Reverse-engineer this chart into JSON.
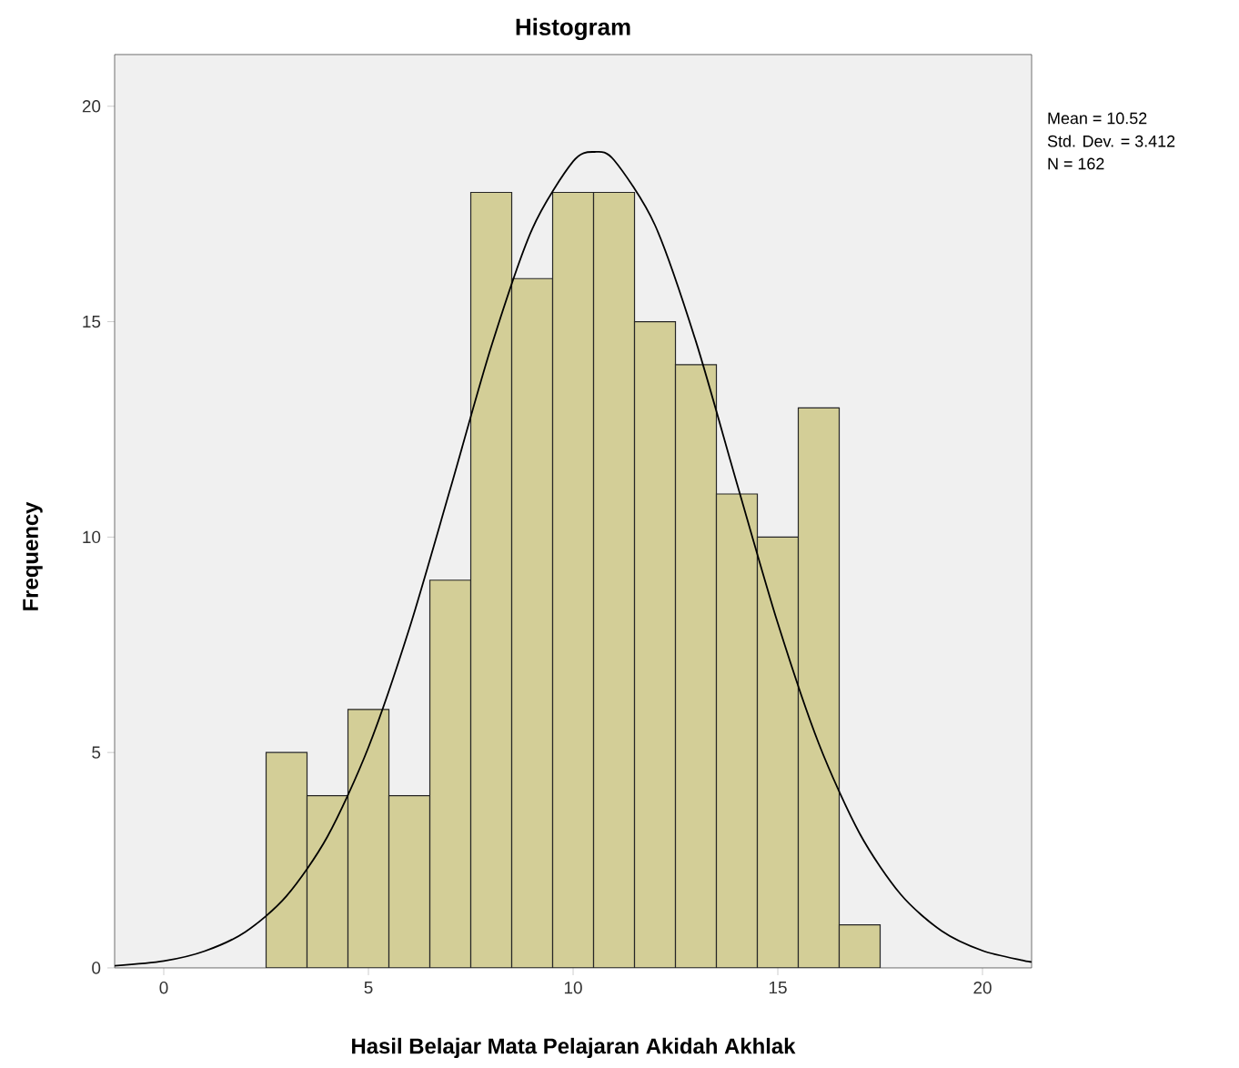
{
  "chart_data": {
    "type": "histogram",
    "title": "Histogram",
    "xlabel": "Hasil Belajar Mata Pelajaran Akidah Akhlak",
    "ylabel": "Frequency",
    "annotations": [
      "Mean = 10.52",
      "Std. Dev. = 3.412",
      "N = 162"
    ],
    "xlim": [
      -1.2,
      21.2
    ],
    "ylim": [
      0,
      21.2
    ],
    "xticks": [
      0,
      5,
      10,
      15,
      20
    ],
    "yticks": [
      0,
      5,
      10,
      15,
      20
    ],
    "series": [
      {
        "type": "histogram",
        "color": "#d3ce97",
        "bins": [
          2.5,
          3.5,
          4.5,
          5.5,
          6.5,
          7.5,
          8.5,
          9.5,
          10.5,
          11.5,
          12.5,
          13.5,
          14.5,
          15.5,
          16.5,
          17.5
        ],
        "values": [
          5,
          4,
          6,
          4,
          9,
          18,
          16,
          18,
          18,
          15,
          14,
          11,
          10,
          13,
          1
        ]
      },
      {
        "type": "line",
        "color": "#000000",
        "x": [
          -1.2,
          0,
          1,
          2,
          3,
          4,
          5,
          6,
          7,
          8,
          9,
          10,
          10.52,
          11,
          12,
          13,
          14,
          15,
          16,
          17,
          18,
          19,
          20,
          21,
          21.2
        ],
        "values": [
          0.05,
          0.16,
          0.39,
          0.84,
          1.67,
          3.05,
          5.12,
          7.88,
          11.12,
          14.42,
          17.15,
          18.72,
          18.94,
          18.75,
          17.24,
          14.54,
          11.25,
          8.0,
          5.21,
          3.12,
          1.71,
          0.86,
          0.4,
          0.17,
          0.14
        ]
      }
    ]
  }
}
